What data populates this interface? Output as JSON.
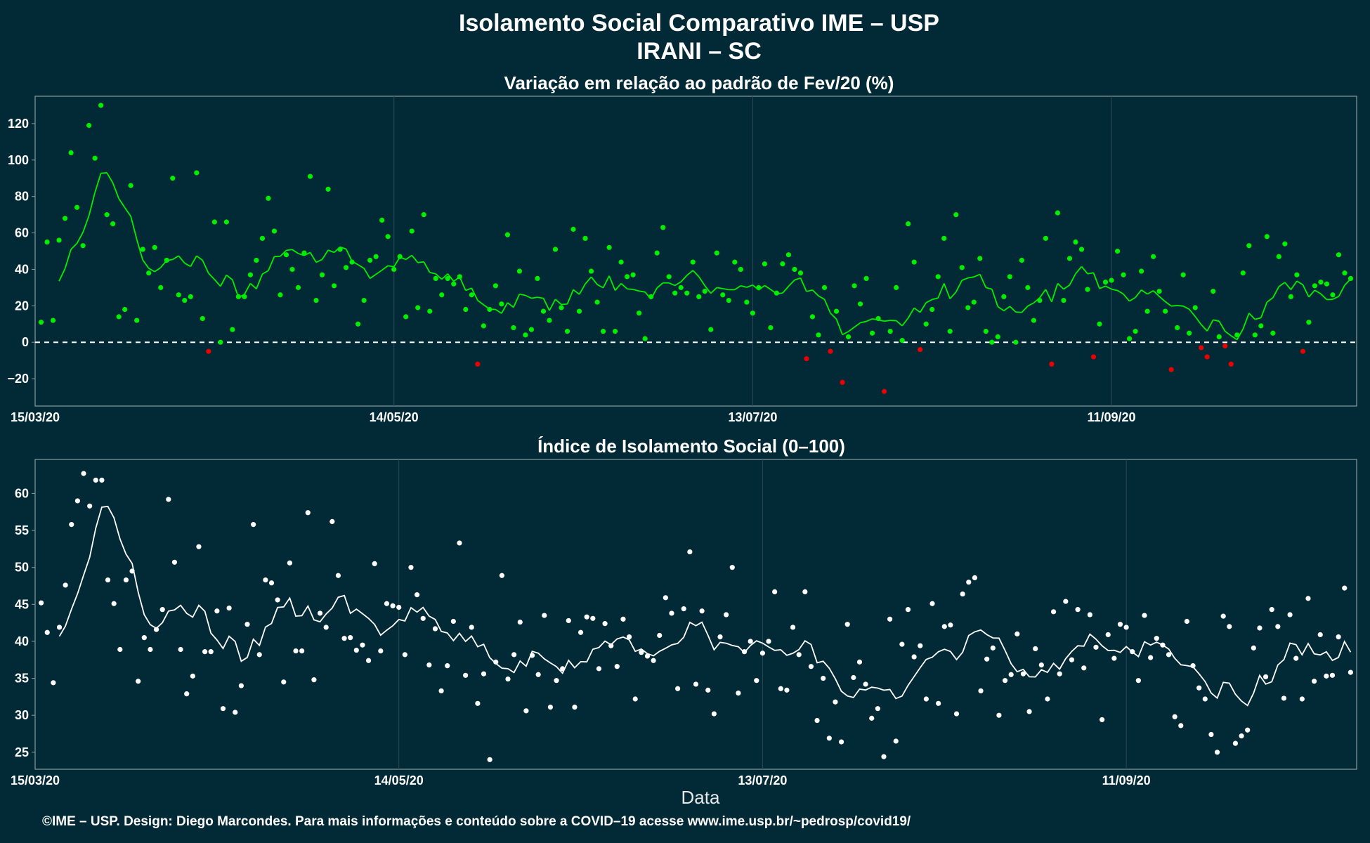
{
  "header": {
    "title_line1": "Isolamento Social Comparativo IME – USP",
    "title_line2": "IRANI – SC"
  },
  "footer": {
    "caption": "©IME – USP. Design: Diego Marcondes. Para mais informações e conteúdo sobre a COVID–19 acesse www.ime.usp.br/~pedrosp/covid19/"
  },
  "colors": {
    "background": "#022a36",
    "panel_border": "#8a9ba0",
    "grid": "#2c4a54",
    "positive": "#00ee00",
    "negative": "#ee0000",
    "index_series": "#ffffff"
  },
  "chart_data": [
    {
      "type": "scatter",
      "title": "Variação em relação ao padrão de Fev/20 (%)",
      "xlabel": "",
      "ylabel": "",
      "x_start": "15/03/20",
      "x_ticks": [
        "15/03/20",
        "14/05/20",
        "13/07/20",
        "11/09/20"
      ],
      "ylim": [
        -35,
        135
      ],
      "y_ticks": [
        -20,
        0,
        20,
        40,
        60,
        80,
        100,
        120
      ],
      "y_tick_labels": [
        "−20",
        "0",
        "20",
        "40",
        "60",
        "80",
        "100",
        "120"
      ],
      "reference_line": 0,
      "grid": true,
      "series": [
        {
          "values": [
            11,
            55,
            12,
            56,
            68,
            104,
            74,
            53,
            119,
            101,
            130,
            70,
            65,
            14,
            18,
            86,
            12,
            51,
            38,
            52,
            30,
            45,
            90,
            26,
            23,
            25,
            93,
            13,
            -5,
            66,
            0,
            66,
            7,
            25,
            25,
            37,
            45,
            57,
            79,
            61,
            26,
            48,
            40,
            30,
            49,
            91,
            23,
            37,
            84,
            31,
            51,
            41,
            44,
            10,
            23,
            45,
            47,
            67,
            58,
            40,
            47,
            14,
            61,
            19,
            70,
            17,
            35,
            26,
            35,
            32,
            36,
            18,
            26,
            -12,
            9,
            18,
            31,
            21,
            59,
            8,
            39,
            4,
            7,
            35,
            17,
            12,
            51,
            19,
            6,
            62,
            17,
            57,
            39,
            22,
            6,
            52,
            6,
            44,
            36,
            37,
            16,
            2,
            25,
            49,
            63,
            36,
            27,
            30,
            27,
            44,
            25,
            28,
            7,
            49,
            26,
            23,
            44,
            40,
            22,
            16,
            30,
            43,
            8,
            27,
            43,
            48,
            40,
            38,
            -9,
            14,
            4,
            30,
            -5,
            17,
            -22,
            3,
            31,
            21,
            35,
            5,
            13,
            -27,
            6,
            30,
            1,
            65,
            44,
            -4,
            10,
            18,
            36,
            57,
            6,
            70,
            41,
            19,
            22,
            46,
            6,
            0,
            3,
            25,
            36,
            0,
            45,
            30,
            12,
            23,
            57,
            -12,
            71,
            23,
            46,
            55,
            51,
            29,
            -8,
            10,
            33,
            34,
            50,
            37,
            2,
            6,
            39,
            17,
            47,
            28,
            17,
            -15,
            8,
            37,
            5,
            19,
            -3,
            -8,
            28,
            3,
            -2,
            -12,
            4,
            38,
            53,
            4,
            9,
            58,
            5,
            47,
            54,
            25,
            37,
            -5,
            11,
            31,
            33,
            32,
            26,
            48,
            38,
            35
          ],
          "moving_average": [
            null,
            null,
            null,
            null,
            null,
            null,
            null,
            null,
            null,
            null,
            null,
            null,
            null,
            null,
            null,
            null,
            null,
            null,
            null,
            null,
            null,
            null,
            null,
            null,
            null,
            null,
            null,
            null,
            null,
            null,
            null,
            null,
            null,
            null,
            null,
            null,
            null,
            null,
            null,
            null,
            null,
            null,
            null,
            null,
            null,
            null,
            null,
            null,
            null,
            null,
            null,
            null,
            null,
            null,
            null,
            null,
            null,
            null,
            null,
            null,
            null,
            null,
            null,
            null,
            null,
            null,
            null,
            null,
            null,
            null,
            null,
            null,
            null,
            null,
            null,
            null,
            null,
            null,
            null,
            null,
            null,
            null,
            null,
            null,
            null,
            null,
            null,
            null,
            null,
            null,
            null,
            null,
            null,
            null,
            null,
            null,
            null,
            null,
            null,
            null,
            null,
            null,
            null,
            null,
            null,
            null,
            null,
            null,
            null,
            null,
            null,
            null,
            null,
            null,
            null,
            null,
            null,
            null,
            null,
            null,
            null,
            null,
            null,
            null,
            null,
            null,
            null,
            null,
            null,
            null,
            null,
            null,
            null,
            null,
            null,
            null,
            null,
            null,
            null,
            null,
            null,
            null,
            null,
            null,
            null,
            null,
            null,
            null,
            null,
            null,
            null,
            null,
            null,
            null,
            null,
            null,
            null,
            null,
            null,
            null,
            null,
            null,
            null,
            null,
            null,
            null,
            null,
            null,
            null,
            null,
            null,
            null,
            null,
            null,
            null,
            null,
            null,
            null,
            null,
            null,
            null,
            null,
            null,
            null,
            null,
            null,
            null,
            null,
            null,
            null,
            null,
            null,
            null,
            null,
            null,
            null,
            null,
            null,
            null,
            null,
            null,
            null,
            null,
            null,
            null,
            null,
            null,
            null,
            null,
            null,
            null,
            null,
            null,
            null,
            null,
            null,
            null,
            null,
            null,
            null,
            null,
            null,
            null,
            null,
            null,
            null,
            null,
            null,
            null,
            null,
            null,
            null,
            null,
            null
          ]
        }
      ]
    },
    {
      "type": "scatter",
      "title": "Índice de Isolamento Social (0–100)",
      "xlabel": "Data",
      "ylabel": "",
      "x_start": "15/03/20",
      "x_ticks": [
        "15/03/20",
        "14/05/20",
        "13/07/20",
        "11/09/20"
      ],
      "ylim": [
        22.7,
        64.6
      ],
      "y_ticks": [
        25,
        30,
        35,
        40,
        45,
        50,
        55,
        60
      ],
      "y_tick_labels": [
        "25",
        "30",
        "35",
        "40",
        "45",
        "50",
        "55",
        "60"
      ],
      "grid": true,
      "series": [
        {
          "values": [
            45.2,
            41.2,
            34.4,
            41.9,
            47.6,
            55.8,
            59.0,
            62.7,
            58.3,
            61.8,
            61.8,
            48.3,
            45.1,
            38.9,
            48.3,
            49.5,
            34.6,
            40.5,
            38.9,
            41.6,
            44.3,
            59.2,
            50.7,
            38.9,
            32.9,
            35.3,
            52.8,
            38.6,
            38.6,
            44.1,
            30.9,
            44.5,
            30.4,
            34.0,
            42.3,
            55.8,
            38.2,
            48.3,
            47.9,
            45.6,
            34.5,
            50.6,
            38.7,
            38.7,
            57.4,
            34.8,
            43.8,
            41.9,
            56.2,
            48.9,
            40.4,
            40.5,
            38.8,
            39.5,
            37.4,
            50.5,
            38.7,
            45.1,
            44.8,
            44.6,
            38.2,
            50.0,
            46.3,
            43.1,
            36.8,
            41.7,
            33.3,
            36.7,
            42.7,
            53.3,
            35.4,
            41.9,
            31.6,
            35.6,
            24.0,
            37.2,
            48.9,
            34.9,
            38.2,
            42.6,
            30.6,
            38.1,
            35.5,
            43.5,
            31.1,
            34.7,
            36.3,
            42.8,
            31.1,
            41.2,
            43.3,
            43.1,
            36.3,
            42.4,
            39.4,
            36.6,
            43.0,
            40.6,
            32.2,
            38.5,
            38.0,
            37.4,
            40.8,
            45.9,
            43.8,
            33.6,
            44.4,
            52.1,
            34.2,
            44.1,
            33.4,
            30.2,
            40.6,
            43.6,
            50.0,
            33.0,
            38.6,
            40.0,
            34.7,
            38.4,
            40.0,
            46.7,
            33.6,
            33.4,
            41.9,
            38.2,
            46.7,
            36.6,
            29.3,
            35.0,
            26.9,
            31.8,
            26.4,
            42.3,
            35.1,
            37.2,
            34.2,
            29.6,
            30.9,
            24.4,
            43.0,
            26.5,
            39.6,
            44.3,
            37.9,
            39.4,
            32.2,
            45.1,
            31.6,
            42.0,
            42.2,
            30.2,
            46.4,
            48.0,
            48.6,
            33.3,
            37.6,
            39.1,
            30.0,
            34.7,
            35.5,
            41.0,
            35.6,
            30.5,
            39.0,
            36.8,
            32.2,
            44.0,
            35.6,
            45.4,
            37.5,
            44.3,
            36.4,
            43.6,
            39.2,
            29.4,
            40.9,
            37.7,
            42.3,
            41.9,
            38.6,
            34.7,
            43.5,
            37.8,
            40.4,
            39.5,
            38.2,
            29.8,
            28.6,
            42.7,
            36.7,
            33.7,
            32.2,
            27.4,
            25.0,
            43.4,
            42.0,
            26.2,
            27.2,
            28.0,
            39.1,
            41.8,
            35.2,
            44.3,
            42.0,
            32.3,
            43.6,
            37.7,
            32.2,
            45.8,
            34.6,
            40.9,
            35.3,
            35.4,
            40.6,
            47.2,
            35.8
          ]
        }
      ]
    }
  ]
}
